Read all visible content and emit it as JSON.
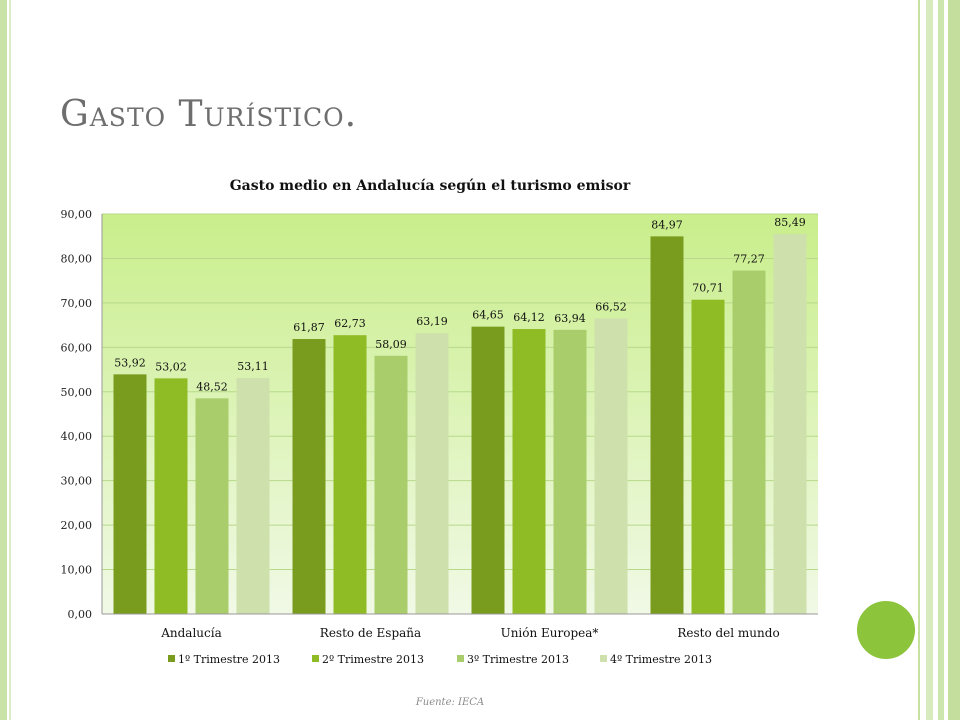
{
  "slide": {
    "title": "Gasto Turístico.",
    "source": "Fuente: IECA"
  },
  "colors": {
    "series": [
      "#7a9c1e",
      "#8fbb24",
      "#a9cd6a",
      "#cee0ab"
    ],
    "plot_bg_top": "#c9ee8b",
    "plot_bg_bottom": "#f1f9e6",
    "accent_circle": "#8cc43c"
  },
  "chart_data": {
    "type": "bar",
    "title": "Gasto medio en Andalucía según el turismo emisor",
    "xlabel": "",
    "ylabel": "",
    "ylim": [
      0,
      90
    ],
    "yticks": [
      "0,00",
      "10,00",
      "20,00",
      "30,00",
      "40,00",
      "50,00",
      "60,00",
      "70,00",
      "80,00",
      "90,00"
    ],
    "grid": true,
    "legend": "bottom",
    "categories": [
      "Andalucía",
      "Resto de España",
      "Unión Europea*",
      "Resto del mundo"
    ],
    "series": [
      {
        "name": "1º Trimestre 2013",
        "values": [
          53.92,
          61.87,
          64.65,
          84.97
        ],
        "labels": [
          "53,92",
          "61,87",
          "64,65",
          "84,97"
        ]
      },
      {
        "name": "2º Trimestre 2013",
        "values": [
          53.02,
          62.73,
          64.12,
          70.71
        ],
        "labels": [
          "53,02",
          "62,73",
          "64,12",
          "70,71"
        ]
      },
      {
        "name": "3º Trimestre 2013",
        "values": [
          48.52,
          58.09,
          63.94,
          77.27
        ],
        "labels": [
          "48,52",
          "58,09",
          "63,94",
          "77,27"
        ]
      },
      {
        "name": "4º Trimestre 2013",
        "values": [
          53.11,
          63.19,
          66.52,
          85.49
        ],
        "labels": [
          "53,11",
          "63,19",
          "66,52",
          "85,49"
        ]
      }
    ]
  }
}
